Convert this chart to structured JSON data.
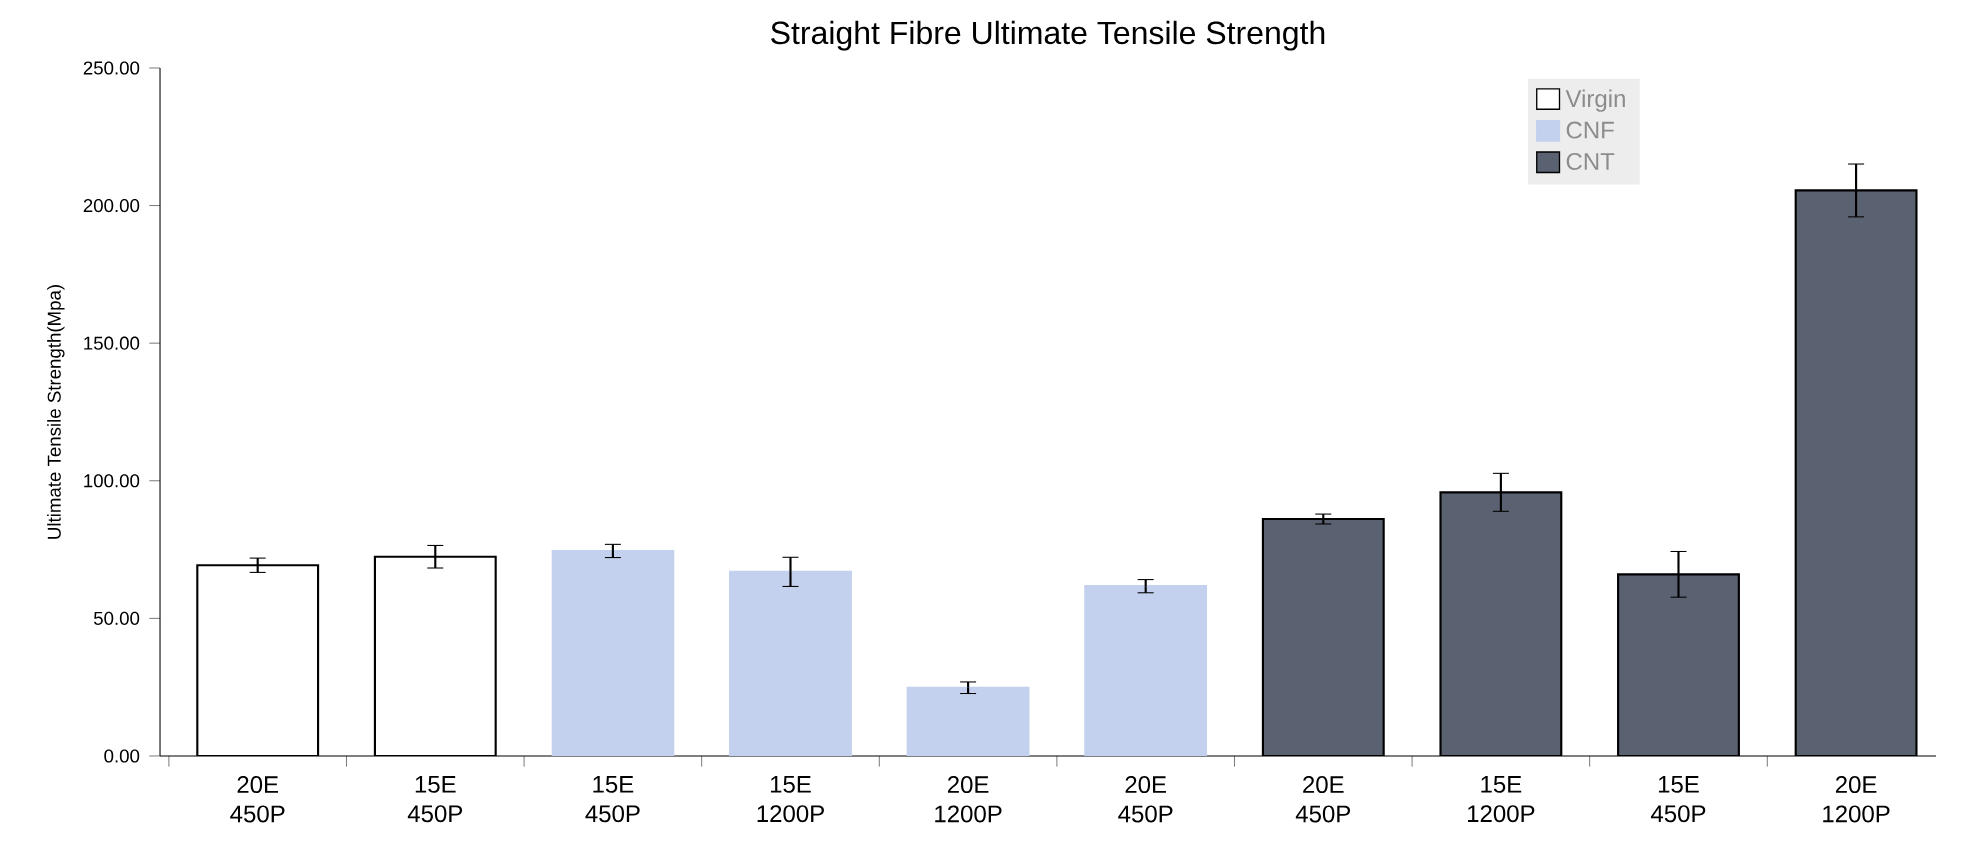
{
  "chart_data": {
    "type": "bar",
    "title": "Straight Fibre Ultimate Tensile Strength",
    "ylabel": "Ultimate Tensile Strength(Mpa)",
    "categories": [
      "20E 450P",
      "15E 450P",
      "15E 450P",
      "15E 1200P",
      "20E 1200P",
      "20E 450P",
      "20E 450P",
      "15E 1200P",
      "15E 450P",
      "20E 1200P"
    ],
    "series": [
      {
        "name": "Virgin",
        "color": "#ffffff",
        "values": [
          69.3,
          72.4,
          null,
          null,
          null,
          null,
          null,
          null,
          null,
          null
        ],
        "errors": [
          2.6,
          4.1,
          null,
          null,
          null,
          null,
          null,
          null,
          null,
          null
        ]
      },
      {
        "name": "CNF",
        "color": "#c3d1ee",
        "values": [
          null,
          null,
          74.5,
          66.9,
          24.8,
          61.7,
          null,
          null,
          null,
          null
        ],
        "errors": [
          null,
          null,
          2.4,
          5.3,
          2.1,
          2.4,
          null,
          null,
          null,
          null
        ]
      },
      {
        "name": "CNT",
        "color": "#5a6170",
        "values": [
          null,
          null,
          null,
          null,
          null,
          null,
          86.1,
          95.8,
          66.0,
          205.5
        ],
        "errors": [
          null,
          null,
          null,
          null,
          null,
          null,
          1.8,
          6.9,
          8.3,
          9.6
        ]
      }
    ],
    "ylim": [
      0,
      250
    ],
    "yticks": [
      {
        "value": 0,
        "label": "0.00"
      },
      {
        "value": 50,
        "label": "50.00"
      },
      {
        "value": 100,
        "label": "100.00"
      },
      {
        "value": 150,
        "label": "150.00"
      },
      {
        "value": 200,
        "label": "200.00"
      },
      {
        "value": 250,
        "label": "250.00"
      }
    ],
    "legend": "top right",
    "grid": false
  }
}
